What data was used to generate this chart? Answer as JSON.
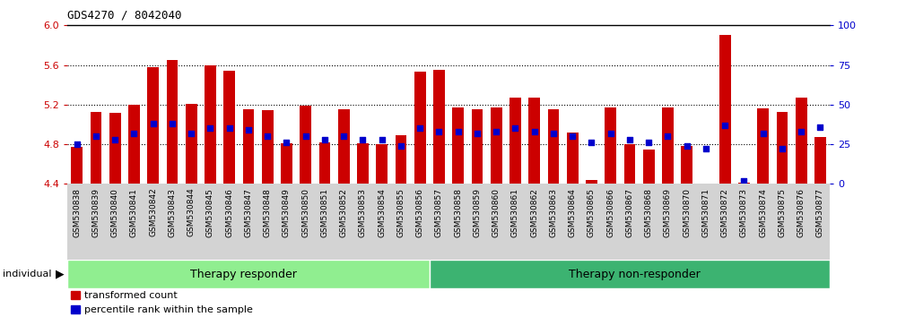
{
  "title": "GDS4270 / 8042040",
  "samples": [
    "GSM530838",
    "GSM530839",
    "GSM530840",
    "GSM530841",
    "GSM530842",
    "GSM530843",
    "GSM530844",
    "GSM530845",
    "GSM530846",
    "GSM530847",
    "GSM530848",
    "GSM530849",
    "GSM530850",
    "GSM530851",
    "GSM530852",
    "GSM530853",
    "GSM530854",
    "GSM530855",
    "GSM530856",
    "GSM530857",
    "GSM530858",
    "GSM530859",
    "GSM530860",
    "GSM530861",
    "GSM530862",
    "GSM530863",
    "GSM530864",
    "GSM530865",
    "GSM530866",
    "GSM530867",
    "GSM530868",
    "GSM530869",
    "GSM530870",
    "GSM530871",
    "GSM530872",
    "GSM530873",
    "GSM530874",
    "GSM530875",
    "GSM530876",
    "GSM530877"
  ],
  "bar_values": [
    4.77,
    5.13,
    5.12,
    5.2,
    5.58,
    5.65,
    5.21,
    5.6,
    5.54,
    5.15,
    5.14,
    4.81,
    5.19,
    4.82,
    5.15,
    4.81,
    4.8,
    4.89,
    5.53,
    5.55,
    5.17,
    5.15,
    5.17,
    5.27,
    5.27,
    5.15,
    4.92,
    4.44,
    5.17,
    4.8,
    4.75,
    5.17,
    4.78,
    4.35,
    5.9,
    4.41,
    5.16,
    5.13,
    5.27,
    4.87
  ],
  "percentile_pct": [
    25,
    30,
    28,
    32,
    38,
    38,
    32,
    35,
    35,
    34,
    30,
    26,
    30,
    28,
    30,
    28,
    28,
    24,
    35,
    33,
    33,
    32,
    33,
    35,
    33,
    32,
    30,
    26,
    32,
    28,
    26,
    30,
    24,
    22,
    37,
    2,
    32,
    22,
    33,
    36
  ],
  "group_labels": [
    "Therapy responder",
    "Therapy non-responder"
  ],
  "group_split": 19,
  "n_samples": 40,
  "bar_color": "#CC0000",
  "percentile_color": "#0000CC",
  "ylim_left": [
    4.4,
    6.0
  ],
  "yticks_left": [
    4.4,
    4.8,
    5.2,
    5.6,
    6.0
  ],
  "ylim_right": [
    0,
    100
  ],
  "yticks_right": [
    0,
    25,
    50,
    75,
    100
  ],
  "ylabel_left_color": "#CC0000",
  "ylabel_right_color": "#0000CC",
  "group_color_1": "#90EE90",
  "group_color_2": "#3CB371",
  "legend_red_label": "transformed count",
  "legend_blue_label": "percentile rank within the sample",
  "individual_label": "individual"
}
